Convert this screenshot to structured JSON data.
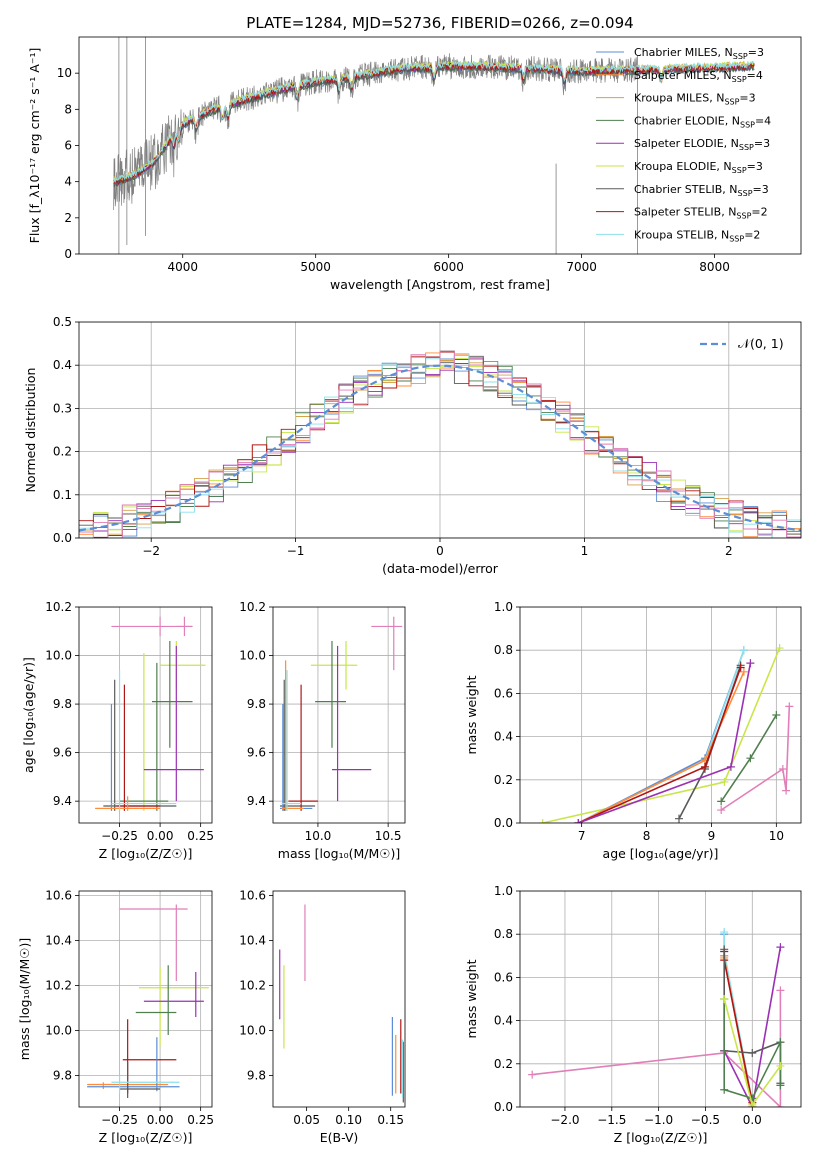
{
  "figure": {
    "title": "PLATE=1284, MJD=52736, FIBERID=0266, z=0.094",
    "colors": {
      "Chabrier MILES": "#5b8ed6",
      "Salpeter MILES": "#ff8c3a",
      "Kroupa MILES": "#d5a24a",
      "Chabrier ELODIE": "#4f7f4f",
      "Salpeter ELODIE": "#9b30b5",
      "Kroupa ELODIE": "#c8e64a",
      "Chabrier STELIB": "#5a5a5a",
      "Salpeter STELIB": "#b01515",
      "Kroupa STELIB": "#8ee0ea",
      "pink": "#e07fb8",
      "data": "#808080",
      "gauss": "#5b8ed6",
      "grid": "#b0b0b0"
    }
  },
  "chart_data": [
    {
      "id": "spectrum",
      "type": "line",
      "title": "PLATE=1284, MJD=52736, FIBERID=0266, z=0.094",
      "xlabel": "wavelength [Angstrom, rest frame]",
      "ylabel": "Flux [f_λ10⁻¹⁷ erg cm⁻² s⁻¹ A⁻¹]",
      "xlim": [
        3220,
        8650
      ],
      "ylim": [
        0,
        12
      ],
      "xticks": [
        4000,
        5000,
        6000,
        7000,
        8000
      ],
      "yticks": [
        0,
        2,
        4,
        6,
        8,
        10
      ],
      "grid": false,
      "legend": {
        "position": "top-right",
        "entries": [
          {
            "label": "Chabrier MILES, N",
            "sub": "SSP",
            "suffix": "=3",
            "color": "#5b8ed6"
          },
          {
            "label": "Salpeter MILES, N",
            "sub": "SSP",
            "suffix": "=4",
            "color": "#ff8c3a"
          },
          {
            "label": "Kroupa MILES, N",
            "sub": "SSP",
            "suffix": "=3",
            "color": "#d5a24a"
          },
          {
            "label": "Chabrier ELODIE, N",
            "sub": "SSP",
            "suffix": "=4",
            "color": "#4f7f4f"
          },
          {
            "label": "Salpeter ELODIE, N",
            "sub": "SSP",
            "suffix": "=3",
            "color": "#9b30b5"
          },
          {
            "label": "Kroupa ELODIE, N",
            "sub": "SSP",
            "suffix": "=3",
            "color": "#c8e64a"
          },
          {
            "label": "Chabrier STELIB, N",
            "sub": "SSP",
            "suffix": "=3",
            "color": "#5a5a5a"
          },
          {
            "label": "Salpeter STELIB, N",
            "sub": "SSP",
            "suffix": "=2",
            "color": "#b01515"
          },
          {
            "label": "Kroupa STELIB, N",
            "sub": "SSP",
            "suffix": "=2",
            "color": "#8ee0ea"
          }
        ]
      },
      "continuum_model": {
        "x": [
          3500,
          3650,
          3800,
          3900,
          4000,
          4200,
          4500,
          4800,
          5000,
          5300,
          5600,
          6000,
          6500,
          7000,
          7500,
          8000,
          8300
        ],
        "y": [
          4.0,
          4.4,
          5.2,
          6.3,
          7.2,
          7.9,
          8.6,
          9.2,
          9.5,
          9.8,
          10.2,
          10.4,
          10.3,
          10.1,
          10.2,
          10.3,
          10.4
        ]
      },
      "data_spectrum_extent": [
        3480,
        7420
      ],
      "model_extent": [
        3480,
        8300
      ]
    },
    {
      "id": "residual-histogram",
      "type": "histogram",
      "xlabel": "(data-model)/error",
      "ylabel": "Normed distribution",
      "xlim": [
        -2.5,
        2.5
      ],
      "ylim": [
        0,
        0.5
      ],
      "xticks": [
        -2,
        -1,
        0,
        1,
        2
      ],
      "yticks": [
        0.0,
        0.1,
        0.2,
        0.3,
        0.4,
        0.5
      ],
      "grid": true,
      "bin_width": 0.1,
      "legend": {
        "position": "top-right",
        "label": "𝒩(0, 1)"
      },
      "reference_curve": "standard normal N(0,1)"
    },
    {
      "id": "age-vs-Z",
      "type": "errorbar",
      "xlabel": "Z [log₁₀(Z/Z☉)]",
      "ylabel": "age  [log₁₀(age/yr)]",
      "xlim": [
        -0.5,
        0.32
      ],
      "ylim": [
        9.31,
        10.2
      ],
      "xticks": [
        -0.25,
        0.0,
        0.25
      ],
      "yticks": [
        9.4,
        9.6,
        9.8,
        10.0,
        10.2
      ],
      "grid": true,
      "points": [
        {
          "c": "#e07fb8",
          "x": 0.0,
          "y": 10.12,
          "xl": -0.3,
          "xh": 0.2,
          "yl": 10.08,
          "yh": 10.16
        },
        {
          "c": "#e07fb8",
          "x": 0.15,
          "y": 10.12,
          "xl": 0.1,
          "xh": 0.2,
          "yl": 10.08,
          "yh": 10.16
        },
        {
          "c": "#c8e64a",
          "x": 0.1,
          "y": 9.96,
          "xl": 0.0,
          "xh": 0.28,
          "yl": 9.86,
          "yh": 10.06
        },
        {
          "c": "#c8e64a",
          "x": -0.1,
          "y": 9.4,
          "xl": -0.2,
          "xh": 0.05,
          "yl": 9.36,
          "yh": 10.01
        },
        {
          "c": "#4f7f4f",
          "x": 0.06,
          "y": 9.81,
          "xl": -0.05,
          "xh": 0.2,
          "yl": 9.62,
          "yh": 10.06
        },
        {
          "c": "#4f7f4f",
          "x": -0.02,
          "y": 9.4,
          "xl": -0.25,
          "xh": 0.05,
          "yl": 9.36,
          "yh": 9.97
        },
        {
          "c": "#9b30b5",
          "x": 0.1,
          "y": 9.53,
          "xl": -0.1,
          "xh": 0.27,
          "yl": 9.4,
          "yh": 10.04
        },
        {
          "c": "#5a5a5a",
          "x": -0.28,
          "y": 9.38,
          "xl": -0.35,
          "xh": 0.1,
          "yl": 9.36,
          "yh": 9.9
        },
        {
          "c": "#b01515",
          "x": -0.22,
          "y": 9.38,
          "xl": -0.27,
          "xh": 0.0,
          "yl": 9.36,
          "yh": 9.88
        },
        {
          "c": "#5b8ed6",
          "x": -0.3,
          "y": 9.37,
          "xl": -0.4,
          "xh": 0.0,
          "yl": 9.36,
          "yh": 9.8
        },
        {
          "c": "#ff8c3a",
          "x": -0.2,
          "y": 9.37,
          "xl": -0.4,
          "xh": 0.0,
          "yl": 9.36,
          "yh": 9.42
        },
        {
          "c": "#8ee0ea",
          "x": -0.25,
          "y": 9.39,
          "xl": -0.3,
          "xh": 0.1,
          "yl": 9.36,
          "yh": 9.94
        }
      ]
    },
    {
      "id": "age-vs-mass",
      "type": "errorbar",
      "xlabel": "mass [log₁₀(M/M☉)]",
      "ylabel": "",
      "xlim": [
        9.68,
        10.62
      ],
      "ylim": [
        9.31,
        10.2
      ],
      "xticks": [
        10.0,
        10.5
      ],
      "yticks": [
        9.4,
        9.6,
        9.8,
        10.0,
        10.2
      ],
      "grid": true,
      "points": [
        {
          "c": "#e07fb8",
          "x": 10.54,
          "y": 10.12,
          "xl": 10.38,
          "xh": 10.6,
          "yl": 9.94,
          "yh": 10.16
        },
        {
          "c": "#c8e64a",
          "x": 10.2,
          "y": 9.96,
          "xl": 9.95,
          "xh": 10.28,
          "yl": 9.86,
          "yh": 10.06
        },
        {
          "c": "#4f7f4f",
          "x": 10.1,
          "y": 9.81,
          "xl": 9.98,
          "xh": 10.2,
          "yl": 9.62,
          "yh": 10.06
        },
        {
          "c": "#9b30b5",
          "x": 10.14,
          "y": 9.53,
          "xl": 10.1,
          "xh": 10.38,
          "yl": 9.4,
          "yh": 10.04
        },
        {
          "c": "#5a5a5a",
          "x": 9.76,
          "y": 9.38,
          "xl": 9.73,
          "xh": 9.98,
          "yl": 9.36,
          "yh": 9.9
        },
        {
          "c": "#b01515",
          "x": 9.88,
          "y": 9.4,
          "xl": 9.79,
          "xh": 10.0,
          "yl": 9.36,
          "yh": 9.88
        },
        {
          "c": "#5b8ed6",
          "x": 9.75,
          "y": 9.37,
          "xl": 9.73,
          "xh": 9.96,
          "yl": 9.36,
          "yh": 9.8
        },
        {
          "c": "#ff8c3a",
          "x": 9.77,
          "y": 9.37,
          "xl": 9.74,
          "xh": 9.9,
          "yl": 9.36,
          "yh": 9.98
        },
        {
          "c": "#8ee0ea",
          "x": 9.78,
          "y": 9.39,
          "xl": 9.74,
          "xh": 9.88,
          "yl": 9.36,
          "yh": 9.94
        }
      ]
    },
    {
      "id": "mass-weight-vs-age",
      "type": "line",
      "xlabel": "age  [log₁₀(age/yr)]",
      "ylabel": "mass weight",
      "xlim": [
        6.05,
        10.38
      ],
      "ylim": [
        0,
        1.0
      ],
      "xticks": [
        7,
        8,
        9,
        10
      ],
      "yticks": [
        0.0,
        0.2,
        0.4,
        0.6,
        0.8,
        1.0
      ],
      "grid": true,
      "series": [
        {
          "c": "#c8e64a",
          "x": [
            6.4,
            9.2,
            10.05
          ],
          "y": [
            0.0,
            0.19,
            0.81
          ]
        },
        {
          "c": "#5b8ed6",
          "x": [
            6.95,
            8.9,
            9.5
          ],
          "y": [
            0.0,
            0.3,
            0.8
          ]
        },
        {
          "c": "#8ee0ea",
          "x": [
            6.95,
            8.9,
            9.5
          ],
          "y": [
            0.0,
            0.29,
            0.8
          ]
        },
        {
          "c": "#ff8c3a",
          "x": [
            6.95,
            8.9,
            9.5
          ],
          "y": [
            0.0,
            0.29,
            0.7
          ]
        },
        {
          "c": "#5a5a5a",
          "x": [
            8.5,
            8.9,
            9.45
          ],
          "y": [
            0.02,
            0.25,
            0.73
          ]
        },
        {
          "c": "#b01515",
          "x": [
            6.95,
            8.9,
            9.45
          ],
          "y": [
            0.0,
            0.26,
            0.72
          ]
        },
        {
          "c": "#9b30b5",
          "x": [
            6.95,
            9.3,
            9.6
          ],
          "y": [
            0.0,
            0.26,
            0.74
          ]
        },
        {
          "c": "#4f7f4f",
          "x": [
            9.15,
            9.6,
            10.0
          ],
          "y": [
            0.1,
            0.3,
            0.5
          ]
        },
        {
          "c": "#e07fb8",
          "x": [
            9.15,
            10.1,
            10.15,
            10.2
          ],
          "y": [
            0.06,
            0.25,
            0.15,
            0.54
          ]
        }
      ]
    },
    {
      "id": "mass-vs-Z",
      "type": "errorbar",
      "xlabel": "Z [log₁₀(Z/Z☉)]",
      "ylabel": "mass [log₁₀(M/M☉)]",
      "xlim": [
        -0.5,
        0.32
      ],
      "ylim": [
        9.66,
        10.62
      ],
      "xticks": [
        -0.25,
        0.0,
        0.25
      ],
      "yticks": [
        9.8,
        10.0,
        10.2,
        10.4,
        10.6
      ],
      "grid": true,
      "points": [
        {
          "c": "#e07fb8",
          "x": 0.1,
          "y": 10.54,
          "xl": -0.25,
          "xh": 0.17,
          "yl": 10.22,
          "yh": 10.56
        },
        {
          "c": "#c8e64a",
          "x": 0.0,
          "y": 10.19,
          "xl": -0.13,
          "xh": 0.3,
          "yl": 9.93,
          "yh": 10.28
        },
        {
          "c": "#9b30b5",
          "x": 0.22,
          "y": 10.13,
          "xl": -0.1,
          "xh": 0.27,
          "yl": 10.06,
          "yh": 10.26
        },
        {
          "c": "#4f7f4f",
          "x": 0.05,
          "y": 10.08,
          "xl": -0.15,
          "xh": 0.1,
          "yl": 9.98,
          "yh": 10.29
        },
        {
          "c": "#b01515",
          "x": -0.2,
          "y": 9.87,
          "xl": -0.23,
          "xh": 0.1,
          "yl": 9.72,
          "yh": 10.05
        },
        {
          "c": "#ff8c3a",
          "x": -0.35,
          "y": 9.76,
          "xl": -0.45,
          "xh": 0.05,
          "yl": 9.74,
          "yh": 9.77
        },
        {
          "c": "#5b8ed6",
          "x": -0.02,
          "y": 9.75,
          "xl": -0.45,
          "xh": 0.12,
          "yl": 9.73,
          "yh": 9.97
        },
        {
          "c": "#5a5a5a",
          "x": -0.2,
          "y": 9.74,
          "xl": -0.25,
          "xh": 0.0,
          "yl": 9.7,
          "yh": 9.86
        },
        {
          "c": "#8ee0ea",
          "x": -0.25,
          "y": 9.77,
          "xl": -0.3,
          "xh": 0.12,
          "yl": 9.72,
          "yh": 9.8
        }
      ]
    },
    {
      "id": "mass-vs-EBV",
      "type": "errorbar",
      "xlabel": "E(B-V)",
      "ylabel": "",
      "xlim": [
        0.01,
        0.167
      ],
      "ylim": [
        9.66,
        10.62
      ],
      "xticks": [
        0.05,
        0.1,
        0.15
      ],
      "yticks": [
        9.8,
        10.0,
        10.2,
        10.4,
        10.6
      ],
      "grid": false,
      "points": [
        {
          "c": "#9b30b5",
          "x": 0.018,
          "y": 10.2,
          "yl": 10.05,
          "yh": 10.36
        },
        {
          "c": "#c8e64a",
          "x": 0.023,
          "y": 10.1,
          "yl": 9.92,
          "yh": 10.29
        },
        {
          "c": "#e07fb8",
          "x": 0.048,
          "y": 10.4,
          "yl": 10.22,
          "yh": 10.56
        },
        {
          "c": "#5b8ed6",
          "x": 0.152,
          "y": 9.88,
          "yl": 9.71,
          "yh": 10.06
        },
        {
          "c": "#ff8c3a",
          "x": 0.156,
          "y": 9.85,
          "yl": 9.72,
          "yh": 9.98
        },
        {
          "c": "#b01515",
          "x": 0.162,
          "y": 9.88,
          "yl": 9.72,
          "yh": 10.05
        },
        {
          "c": "#5a5a5a",
          "x": 0.165,
          "y": 9.8,
          "yl": 9.68,
          "yh": 9.95
        },
        {
          "c": "#8ee0ea",
          "x": 0.164,
          "y": 9.82,
          "yl": 9.7,
          "yh": 9.96
        }
      ]
    },
    {
      "id": "mass-weight-vs-Z",
      "type": "line",
      "xlabel": "Z [log₁₀(Z/Z☉)]",
      "ylabel": "mass weight",
      "xlim": [
        -2.48,
        0.52
      ],
      "ylim": [
        0,
        1.0
      ],
      "xticks": [
        -2.0,
        -1.5,
        -1.0,
        -0.5,
        0.0
      ],
      "yticks": [
        0.0,
        0.2,
        0.4,
        0.6,
        0.8,
        1.0
      ],
      "grid": true,
      "series": [
        {
          "c": "#e07fb8",
          "x": [
            -2.35,
            -0.3,
            0.3,
            0.3
          ],
          "y": [
            0.15,
            0.25,
            0.0,
            0.54
          ]
        },
        {
          "c": "#9b30b5",
          "x": [
            -0.3,
            0.0,
            0.3
          ],
          "y": [
            0.26,
            0.0,
            0.74
          ]
        },
        {
          "c": "#5b8ed6",
          "x": [
            -0.3,
            -0.3,
            0.0
          ],
          "y": [
            0.8,
            0.7,
            0.0
          ]
        },
        {
          "c": "#8ee0ea",
          "x": [
            -0.3,
            -0.3,
            0.0
          ],
          "y": [
            0.81,
            0.72,
            0.02
          ]
        },
        {
          "c": "#ff8c3a",
          "x": [
            -0.3,
            -0.3,
            0.0
          ],
          "y": [
            0.7,
            0.69,
            0.0
          ]
        },
        {
          "c": "#b01515",
          "x": [
            -0.3,
            -0.3,
            0.0
          ],
          "y": [
            0.72,
            0.68,
            0.02
          ]
        },
        {
          "c": "#5a5a5a",
          "x": [
            -0.3,
            -0.3,
            0.0,
            0.3,
            0.3
          ],
          "y": [
            0.73,
            0.26,
            0.25,
            0.3,
            0.11
          ]
        },
        {
          "c": "#4f7f4f",
          "x": [
            -0.3,
            -0.3,
            0.0,
            0.3,
            0.3
          ],
          "y": [
            0.5,
            0.08,
            0.04,
            0.3,
            0.1
          ]
        },
        {
          "c": "#c8e64a",
          "x": [
            -0.3,
            0.0,
            0.3
          ],
          "y": [
            0.5,
            0.01,
            0.19
          ]
        }
      ]
    }
  ]
}
